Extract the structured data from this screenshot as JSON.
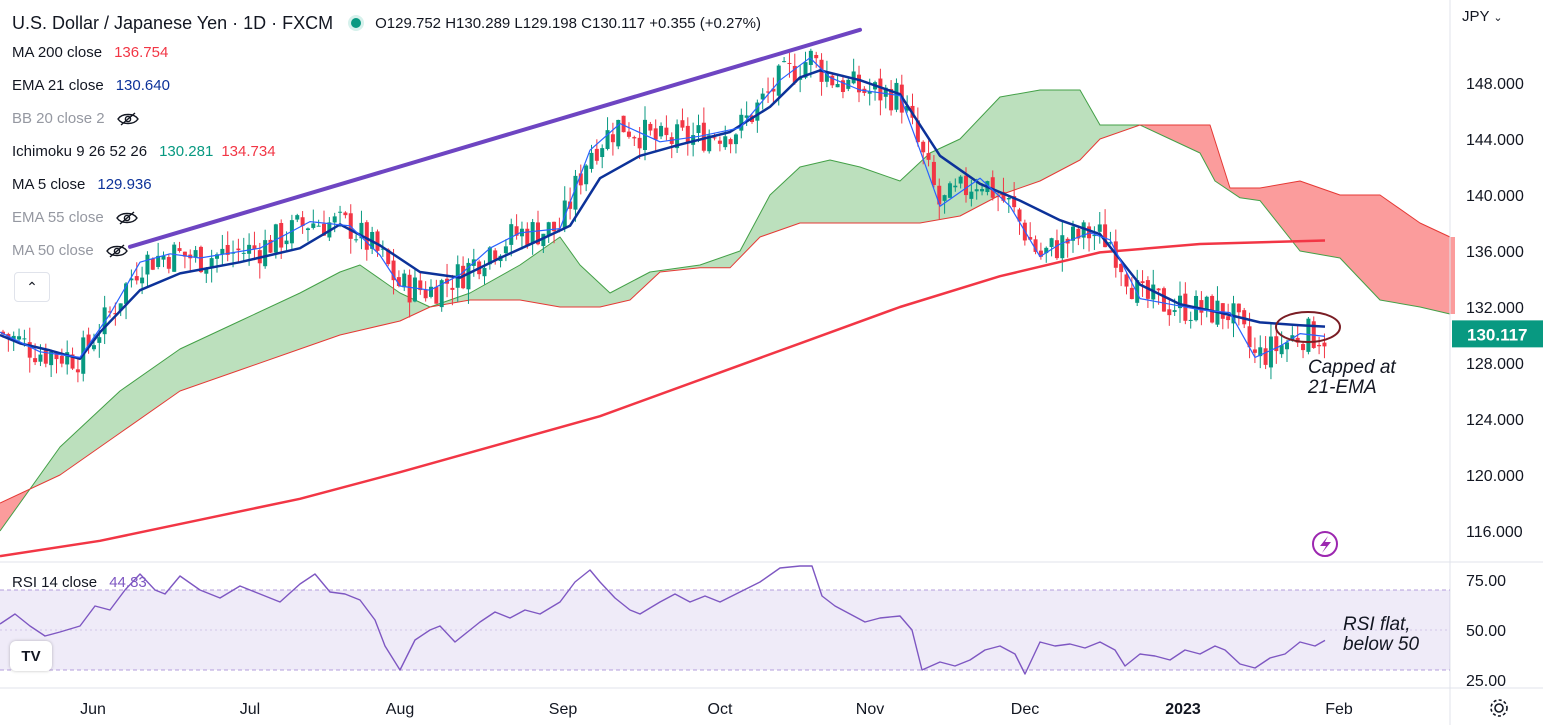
{
  "header": {
    "symbol": "U.S. Dollar / Japanese Yen · 1D · FXCM",
    "ohlc": "O129.752 H130.289 L129.198 C130.117 +0.355 (+0.27%)",
    "status_color": "#089981"
  },
  "indicators": [
    {
      "label": "MA 200 close",
      "value": "136.754",
      "color": "#f23645",
      "visible": true
    },
    {
      "label": "EMA 21 close",
      "value": "130.640",
      "color": "#0c3299",
      "visible": true
    },
    {
      "label": "BB 20 close 2",
      "value": "",
      "color": "#9598a1",
      "visible": false
    },
    {
      "label": "Ichimoku 9 26 52 26",
      "value": "130.281",
      "value2": "134.734",
      "color": "#089981",
      "color2": "#f23645",
      "visible": true
    },
    {
      "label": "MA 5 close",
      "value": "129.936",
      "color": "#0c3299",
      "visible": true
    },
    {
      "label": "EMA 55 close",
      "value": "",
      "color": "#9598a1",
      "visible": false
    },
    {
      "label": "MA 50 close",
      "value": "",
      "color": "#9598a1",
      "visible": false
    }
  ],
  "currency_button": "JPY",
  "price_badge": "130.117",
  "rsi": {
    "label": "RSI 14 close",
    "value": "44.83",
    "color": "#7e57c2"
  },
  "annotations": {
    "capped": [
      "Capped at",
      "21-EMA"
    ],
    "rsi_note": [
      "RSI flat,",
      "below 50"
    ]
  },
  "logo_text": "TV",
  "chart_data": {
    "type": "line",
    "title": "",
    "x": [
      "Jun",
      "Jul",
      "Aug",
      "Sep",
      "Oct",
      "Nov",
      "Dec",
      "2023",
      "Feb"
    ],
    "ylim": [
      114,
      152
    ],
    "yticks": [
      "148.000",
      "144.000",
      "140.000",
      "136.000",
      "132.000",
      "128.000",
      "124.000",
      "120.000",
      "116.000"
    ],
    "rsi_ylim": [
      23,
      83
    ],
    "rsi_ticks": [
      "75.00",
      "50.00",
      "25.00"
    ],
    "colors": {
      "up": "#089981",
      "down": "#f23645",
      "ema21": "#0c3299",
      "ma5": "#2962ff",
      "ma200": "#f23645",
      "trend": "#6e45c2",
      "rsi": "#7e57c2",
      "cloud_bull": "#a5d6a7",
      "cloud_bear": "#fa8b8b"
    },
    "series": [
      {
        "name": "EMA 21",
        "values": [
          [
            0,
            130
          ],
          [
            20,
            129.4
          ],
          [
            50,
            128.9
          ],
          [
            80,
            128.3
          ],
          [
            100,
            130.2
          ],
          [
            140,
            133.2
          ],
          [
            180,
            134.4
          ],
          [
            240,
            135.2
          ],
          [
            300,
            136.2
          ],
          [
            340,
            137.9
          ],
          [
            380,
            136.4
          ],
          [
            420,
            134.5
          ],
          [
            460,
            134.1
          ],
          [
            500,
            135.5
          ],
          [
            540,
            136.8
          ],
          [
            570,
            137.8
          ],
          [
            600,
            141.2
          ],
          [
            640,
            142.8
          ],
          [
            680,
            143.6
          ],
          [
            730,
            144.5
          ],
          [
            770,
            146.3
          ],
          [
            800,
            148.4
          ],
          [
            820,
            148.9
          ],
          [
            860,
            148.2
          ],
          [
            900,
            147.2
          ],
          [
            940,
            142.8
          ],
          [
            980,
            140.8
          ],
          [
            1020,
            139.6
          ],
          [
            1060,
            138.2
          ],
          [
            1100,
            137.2
          ],
          [
            1140,
            133.6
          ],
          [
            1180,
            132.2
          ],
          [
            1220,
            131.6
          ],
          [
            1260,
            130.9
          ],
          [
            1300,
            130.7
          ],
          [
            1325,
            130.6
          ]
        ]
      },
      {
        "name": "MA 5",
        "values": [
          [
            0,
            130.2
          ],
          [
            40,
            128.8
          ],
          [
            80,
            128.4
          ],
          [
            110,
            131.5
          ],
          [
            140,
            135.2
          ],
          [
            170,
            135.8
          ],
          [
            200,
            135.5
          ],
          [
            260,
            136.2
          ],
          [
            310,
            138.1
          ],
          [
            350,
            137.8
          ],
          [
            380,
            135.7
          ],
          [
            400,
            133.5
          ],
          [
            430,
            133.2
          ],
          [
            460,
            134.3
          ],
          [
            490,
            136.2
          ],
          [
            520,
            137.3
          ],
          [
            560,
            137.6
          ],
          [
            590,
            143.2
          ],
          [
            620,
            145.1
          ],
          [
            660,
            143.8
          ],
          [
            700,
            144.2
          ],
          [
            740,
            144.8
          ],
          [
            780,
            148.2
          ],
          [
            810,
            149.8
          ],
          [
            830,
            148.4
          ],
          [
            860,
            147.5
          ],
          [
            900,
            147.1
          ],
          [
            920,
            143.2
          ],
          [
            940,
            139.2
          ],
          [
            960,
            140.2
          ],
          [
            980,
            141.2
          ],
          [
            1010,
            139.2
          ],
          [
            1040,
            135.6
          ],
          [
            1060,
            136.5
          ],
          [
            1090,
            137.3
          ],
          [
            1110,
            136.8
          ],
          [
            1140,
            132.6
          ],
          [
            1170,
            132.2
          ],
          [
            1200,
            131.8
          ],
          [
            1230,
            131.6
          ],
          [
            1255,
            128.4
          ],
          [
            1280,
            129.2
          ],
          [
            1300,
            130.1
          ],
          [
            1325,
            129.9
          ]
        ]
      },
      {
        "name": "MA 200",
        "values": [
          [
            0,
            114.2
          ],
          [
            100,
            115.3
          ],
          [
            200,
            116.8
          ],
          [
            300,
            118.3
          ],
          [
            400,
            120.2
          ],
          [
            500,
            122.2
          ],
          [
            600,
            124.2
          ],
          [
            700,
            126.8
          ],
          [
            800,
            129.4
          ],
          [
            900,
            132.0
          ],
          [
            1000,
            134.2
          ],
          [
            1100,
            135.9
          ],
          [
            1200,
            136.5
          ],
          [
            1325,
            136.75
          ]
        ]
      },
      {
        "name": "RSI 14",
        "values": [
          [
            0,
            53
          ],
          [
            15,
            58
          ],
          [
            30,
            52
          ],
          [
            45,
            47
          ],
          [
            60,
            49
          ],
          [
            80,
            52
          ],
          [
            95,
            62
          ],
          [
            110,
            60
          ],
          [
            125,
            70
          ],
          [
            140,
            78
          ],
          [
            155,
            70
          ],
          [
            165,
            68
          ],
          [
            180,
            77
          ],
          [
            200,
            70
          ],
          [
            220,
            66
          ],
          [
            240,
            72
          ],
          [
            260,
            68
          ],
          [
            280,
            64
          ],
          [
            300,
            73
          ],
          [
            315,
            78
          ],
          [
            330,
            69
          ],
          [
            345,
            68
          ],
          [
            360,
            65
          ],
          [
            375,
            55
          ],
          [
            385,
            42
          ],
          [
            400,
            30
          ],
          [
            415,
            45
          ],
          [
            430,
            50
          ],
          [
            440,
            52
          ],
          [
            455,
            44
          ],
          [
            470,
            50
          ],
          [
            480,
            54
          ],
          [
            495,
            59
          ],
          [
            510,
            56
          ],
          [
            525,
            60
          ],
          [
            540,
            58
          ],
          [
            560,
            64
          ],
          [
            575,
            74
          ],
          [
            590,
            80
          ],
          [
            600,
            74
          ],
          [
            615,
            66
          ],
          [
            630,
            60
          ],
          [
            640,
            58
          ],
          [
            660,
            64
          ],
          [
            675,
            68
          ],
          [
            690,
            64
          ],
          [
            705,
            67
          ],
          [
            720,
            64
          ],
          [
            740,
            69
          ],
          [
            760,
            74
          ],
          [
            780,
            81
          ],
          [
            800,
            82
          ],
          [
            812,
            82
          ],
          [
            822,
            67
          ],
          [
            835,
            62
          ],
          [
            850,
            58
          ],
          [
            865,
            54
          ],
          [
            880,
            56
          ],
          [
            900,
            57
          ],
          [
            912,
            50
          ],
          [
            922,
            30
          ],
          [
            940,
            34
          ],
          [
            955,
            32
          ],
          [
            970,
            35
          ],
          [
            985,
            40
          ],
          [
            1000,
            42
          ],
          [
            1015,
            38
          ],
          [
            1025,
            28
          ],
          [
            1040,
            44
          ],
          [
            1055,
            42
          ],
          [
            1070,
            43
          ],
          [
            1085,
            41
          ],
          [
            1100,
            44
          ],
          [
            1115,
            40
          ],
          [
            1125,
            32
          ],
          [
            1140,
            38
          ],
          [
            1155,
            37
          ],
          [
            1170,
            35
          ],
          [
            1185,
            40
          ],
          [
            1200,
            38
          ],
          [
            1215,
            42
          ],
          [
            1225,
            40
          ],
          [
            1240,
            33
          ],
          [
            1255,
            31
          ],
          [
            1270,
            36
          ],
          [
            1285,
            38
          ],
          [
            1300,
            44
          ],
          [
            1315,
            42
          ],
          [
            1325,
            44.83
          ]
        ]
      }
    ]
  }
}
